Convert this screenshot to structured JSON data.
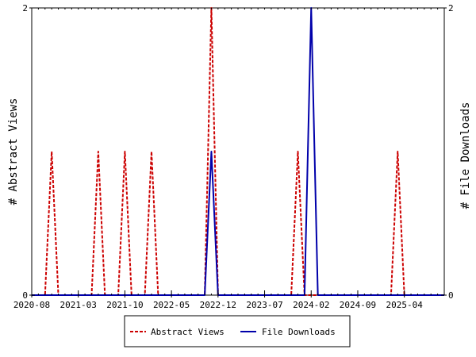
{
  "chart_data": {
    "type": "line",
    "x_tick_labels": [
      "2020-08",
      "2021-03",
      "2021-10",
      "2022-05",
      "2022-12",
      "2023-07",
      "2024-02",
      "2024-09",
      "2025-04"
    ],
    "x_range": [
      "2020-08",
      "2025-10"
    ],
    "ylabel_left": "# Abstract Views",
    "ylabel_right": "# File Downloads",
    "ylim_left": [
      0,
      2
    ],
    "ylim_right": [
      0,
      2
    ],
    "y_tick_labels_left": [
      "0",
      "2"
    ],
    "y_tick_labels_right": [
      "0",
      "2"
    ],
    "grid": false,
    "legend_position": "bottom",
    "series": [
      {
        "name": "Abstract Views",
        "axis": "left",
        "color": "#cc0000",
        "style": "dashed",
        "points": [
          [
            "2020-08",
            0
          ],
          [
            "2020-10",
            0
          ],
          [
            "2020-11",
            1
          ],
          [
            "2020-12",
            0
          ],
          [
            "2021-05",
            0
          ],
          [
            "2021-06",
            1
          ],
          [
            "2021-07",
            0
          ],
          [
            "2021-09",
            0
          ],
          [
            "2021-10",
            1
          ],
          [
            "2021-11",
            0
          ],
          [
            "2022-01",
            0
          ],
          [
            "2022-02",
            1
          ],
          [
            "2022-03",
            0
          ],
          [
            "2022-10",
            0
          ],
          [
            "2022-11",
            2
          ],
          [
            "2022-12",
            0
          ],
          [
            "2023-11",
            0
          ],
          [
            "2023-12",
            1
          ],
          [
            "2024-01",
            0
          ],
          [
            "2025-02",
            0
          ],
          [
            "2025-03",
            1
          ],
          [
            "2025-04",
            0
          ],
          [
            "2025-10",
            0
          ]
        ]
      },
      {
        "name": "File Downloads",
        "axis": "right",
        "color": "#0000aa",
        "style": "solid",
        "points": [
          [
            "2020-08",
            0
          ],
          [
            "2022-10",
            0
          ],
          [
            "2022-11",
            1
          ],
          [
            "2022-12",
            0
          ],
          [
            "2024-01",
            0
          ],
          [
            "2024-02",
            2
          ],
          [
            "2024-03",
            0
          ],
          [
            "2025-10",
            0
          ]
        ]
      }
    ]
  }
}
